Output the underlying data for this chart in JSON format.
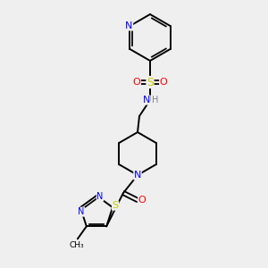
{
  "background_color": "#efefef",
  "atom_colors": {
    "N": "#0000ff",
    "S": "#cccc00",
    "O": "#ff0000",
    "C": "#000000",
    "H": "#808080"
  },
  "bond_color": "#000000",
  "figsize": [
    3.0,
    3.0
  ],
  "dpi": 100
}
